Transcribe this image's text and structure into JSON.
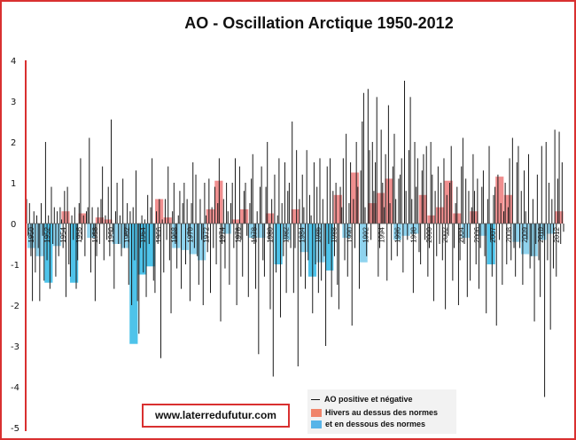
{
  "chart_data": {
    "type": "bar",
    "title": "AO - Oscillation Arctique 1950-2012",
    "ylim": [
      -5,
      4
    ],
    "yticks": [
      4,
      3,
      2,
      1,
      0,
      -1,
      -2,
      -3,
      -4,
      -5
    ],
    "xtick_labels": [
      "1950",
      "1952",
      "1954",
      "1956",
      "1958",
      "1960",
      "1962",
      "1964",
      "1966",
      "1968",
      "1970",
      "1972",
      "1974",
      "1976",
      "1978",
      "1980",
      "1982",
      "1984",
      "1986",
      "1988",
      "1990",
      "1992",
      "1994",
      "1996",
      "1998",
      "2000",
      "2002",
      "2004",
      "2006",
      "2007",
      "2008",
      "2009",
      "2010",
      "2012"
    ],
    "winter_series": {
      "categories": [
        1950,
        1951,
        1952,
        1953,
        1954,
        1955,
        1956,
        1957,
        1958,
        1959,
        1960,
        1961,
        1962,
        1963,
        1964,
        1965,
        1966,
        1967,
        1968,
        1969,
        1970,
        1971,
        1972,
        1973,
        1974,
        1975,
        1976,
        1977,
        1978,
        1979,
        1980,
        1981,
        1982,
        1983,
        1984,
        1985,
        1986,
        1987,
        1988,
        1989,
        1990,
        1991,
        1992,
        1993,
        1994,
        1995,
        1996,
        1997,
        1998,
        1999,
        2000,
        2001,
        2002,
        2003,
        2004,
        2005,
        2006,
        2007,
        2008,
        2009,
        2010,
        2011,
        2012
      ],
      "values": [
        -0.6,
        -0.8,
        -1.45,
        -0.55,
        0.3,
        -1.45,
        0.25,
        -0.35,
        0.15,
        0.1,
        -0.5,
        -0.6,
        -2.95,
        -1.25,
        -1.05,
        0.6,
        0.15,
        -0.6,
        -0.65,
        -0.75,
        -0.9,
        0.35,
        1.05,
        -0.25,
        0.1,
        0.35,
        -0.35,
        -0.35,
        0.25,
        -1.0,
        -0.4,
        0.35,
        -0.7,
        -1.3,
        -0.95,
        -1.15,
        0.7,
        -0.35,
        1.25,
        -0.95,
        0.5,
        0.75,
        1.1,
        -0.4,
        -0.3,
        -0.25,
        0.7,
        0.2,
        0.4,
        1.05,
        0.25,
        -0.35,
        0.3,
        -0.3,
        -1.0,
        1.15,
        0.7,
        -0.45,
        -0.75,
        -0.8,
        -0.4,
        -0.25,
        0.3
      ],
      "colors": {
        "above": "#f08f8f",
        "below": "#8fd3ee",
        "below_strong": "#4ec3ea"
      }
    },
    "monthly_series": {
      "values": [
        0.6,
        -0.3,
        0.5,
        -0.8,
        -1.9,
        0.3,
        -1.2,
        0.2,
        -0.6,
        -1.9,
        0.5,
        -0.3,
        -1.4,
        2.0,
        -0.9,
        0.2,
        -1.6,
        0.9,
        -0.5,
        0.4,
        -1.3,
        0.3,
        -0.8,
        0.4,
        0.1,
        -0.6,
        0.8,
        -1.8,
        0.9,
        -1.0,
        -1.3,
        0.2,
        -0.4,
        0.4,
        -1.6,
        -0.9,
        0.5,
        1.6,
        -0.4,
        0.2,
        -0.8,
        0.3,
        0.4,
        2.1,
        -1.2,
        0.4,
        -0.3,
        -1.9,
        -0.8,
        0.4,
        -0.5,
        0.6,
        1.4,
        -0.9,
        0.2,
        -0.4,
        0.9,
        -0.8,
        2.55,
        -0.2,
        -1.6,
        0.3,
        1.0,
        -0.5,
        0.2,
        -0.8,
        1.1,
        -0.6,
        -0.3,
        0.5,
        -1.5,
        0.3,
        -2.0,
        0.4,
        -0.9,
        1.3,
        -1.9,
        -2.7,
        -0.6,
        0.2,
        -1.2,
        0.1,
        -1.8,
        0.7,
        -0.5,
        0.4,
        1.6,
        -1.4,
        -1.7,
        0.3,
        -0.5,
        0.6,
        -3.3,
        0.1,
        -1.2,
        0.6,
        -0.4,
        1.4,
        -0.9,
        -2.2,
        0.3,
        1.0,
        -0.5,
        -1.1,
        0.2,
        0.8,
        -1.6,
        0.5,
        1.0,
        -1.0,
        0.6,
        -0.3,
        -1.9,
        0.5,
        1.5,
        -0.6,
        1.2,
        -0.8,
        -1.5,
        0.6,
        -0.4,
        -2.0,
        1.0,
        0.2,
        -0.7,
        1.1,
        -1.7,
        0.4,
        -0.6,
        0.9,
        -1.0,
        0.5,
        1.6,
        -2.4,
        -0.5,
        0.6,
        -1.1,
        1.0,
        0.3,
        -1.5,
        0.5,
        1.0,
        -0.6,
        1.6,
        -2.0,
        -0.4,
        1.4,
        -0.4,
        -1.3,
        0.8,
        1.0,
        -0.3,
        -1.8,
        0.5,
        1.1,
        1.7,
        -0.5,
        -1.6,
        0.3,
        -3.2,
        0.9,
        1.4,
        -0.9,
        -1.3,
        0.9,
        2.0,
        -0.4,
        -2.1,
        0.6,
        -3.75,
        1.2,
        -1.2,
        0.2,
        1.6,
        -2.3,
        0.5,
        -0.8,
        1.5,
        -1.7,
        0.8,
        1.0,
        -0.6,
        2.5,
        -1.7,
        -0.6,
        1.8,
        -3.5,
        0.6,
        -1.3,
        1.2,
        0.4,
        -1.6,
        1.8,
        -0.9,
        0.7,
        0.2,
        -2.2,
        1.5,
        -1.0,
        0.9,
        -1.7,
        1.6,
        -1.4,
        0.6,
        -0.8,
        -3.0,
        1.4,
        -0.5,
        1.6,
        -1.8,
        0.8,
        -0.8,
        1.0,
        -1.5,
        -2.1,
        0.9,
        0.4,
        1.6,
        -0.9,
        2.2,
        -1.3,
        0.5,
        1.5,
        -2.5,
        0.6,
        -0.6,
        2.0,
        0.9,
        -1.6,
        1.3,
        2.5,
        3.2,
        0.4,
        -0.8,
        3.3,
        1.8,
        -0.4,
        2.0,
        0.8,
        1.5,
        3.1,
        -1.3,
        -0.6,
        2.3,
        1.0,
        0.4,
        1.7,
        -1.4,
        2.9,
        0.5,
        -0.9,
        1.4,
        2.2,
        0.6,
        -0.8,
        1.1,
        1.2,
        1.6,
        -1.2,
        3.5,
        0.8,
        -0.4,
        1.8,
        3.1,
        0.6,
        -1.7,
        2.0,
        0.9,
        1.6,
        -0.7,
        -1.0,
        1.3,
        1.7,
        -0.4,
        1.9,
        -1.3,
        -0.6,
        2.0,
        1.2,
        -1.9,
        0.8,
        -0.8,
        1.4,
        -0.5,
        1.0,
        -0.9,
        1.6,
        -2.1,
        0.7,
        -0.3,
        1.0,
        1.9,
        -1.4,
        -0.6,
        0.5,
        0.9,
        -2.0,
        -0.9,
        1.4,
        2.1,
        -0.5,
        1.1,
        -1.8,
        0.8,
        -1.4,
        0.4,
        1.7,
        0.8,
        -1.0,
        1.1,
        -1.6,
        -0.6,
        0.9,
        1.3,
        -0.8,
        -2.2,
        0.6,
        1.9,
        -0.4,
        -1.3,
        0.7,
        0.9,
        -2.5,
        1.2,
        -0.4,
        0.5,
        -1.5,
        0.3,
        1.0,
        -1.0,
        0.4,
        1.6,
        -0.9,
        2.1,
        -0.6,
        -1.3,
        1.5,
        1.9,
        -0.6,
        0.8,
        -1.5,
        1.3,
        0.3,
        -0.4,
        1.7,
        -1.1,
        -0.8,
        0.6,
        -2.4,
        -0.5,
        1.2,
        -0.9,
        -1.8,
        1.9,
        -0.3,
        -4.25,
        2.0,
        -0.9,
        1.0,
        -2.6,
        0.6,
        -1.1,
        2.3,
        -1.3,
        1.1,
        2.25,
        -0.5,
        1.5,
        -0.2
      ]
    },
    "legend": {
      "line_label": "AO positive et négative",
      "winter_label_1": "Hivers au dessus des normes",
      "winter_label_2": "et en dessous des normes"
    },
    "source": "www.laterredufutur.com"
  }
}
